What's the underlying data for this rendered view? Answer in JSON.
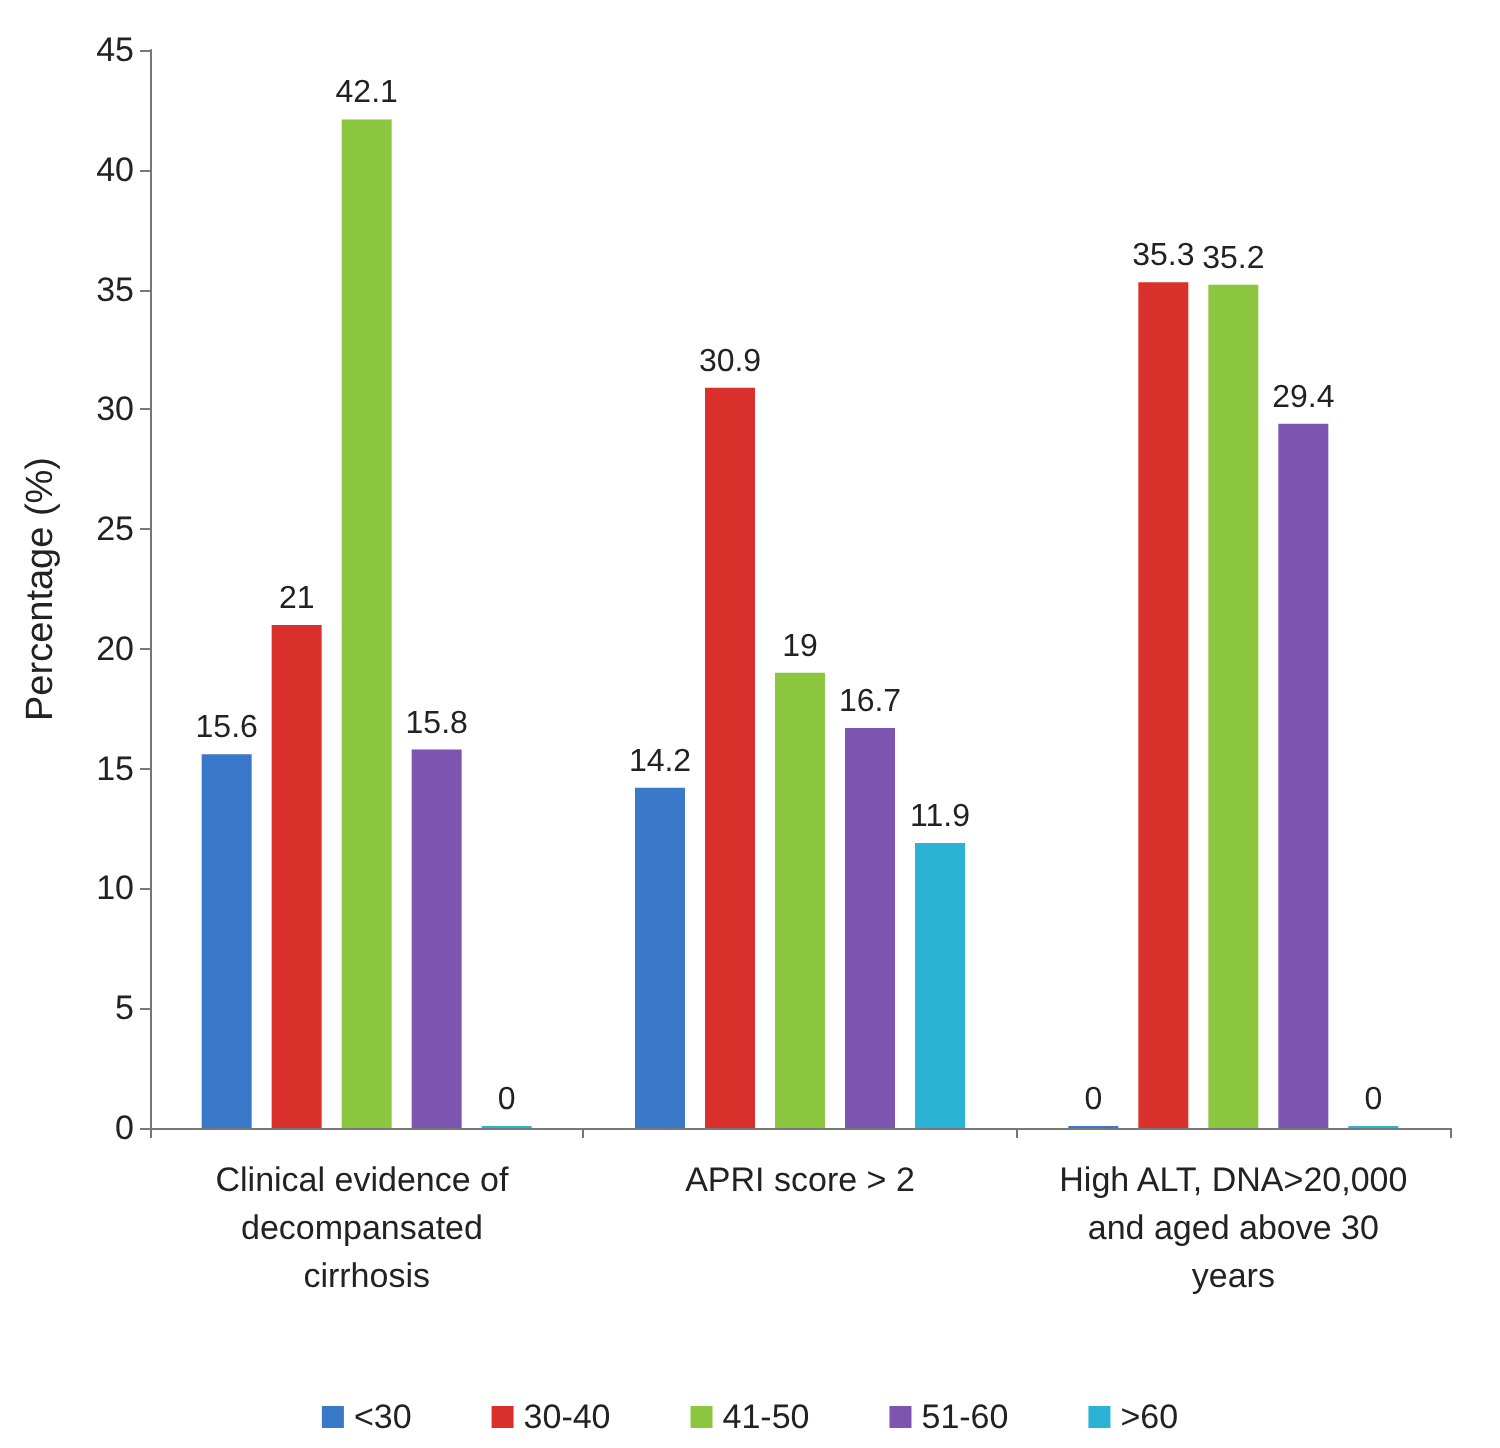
{
  "chart_data": {
    "type": "bar",
    "ylabel": "Percentage (%)",
    "categories": [
      "Clinical evidence of decompansated cirrhosis",
      "APRI score > 2",
      "High ALT, DNA>20,000 and aged above 30 years"
    ],
    "series": [
      {
        "name": "<30",
        "color": "#3a78c9",
        "values": [
          15.6,
          14.2,
          0
        ]
      },
      {
        "name": "30-40",
        "color": "#d9302c",
        "values": [
          21,
          30.9,
          35.3
        ]
      },
      {
        "name": "41-50",
        "color": "#8cc63f",
        "values": [
          42.1,
          19,
          35.2
        ]
      },
      {
        "name": "51-60",
        "color": "#7d55b0",
        "values": [
          15.8,
          16.7,
          29.4
        ]
      },
      {
        "name": ">60",
        "color": "#2ab3d4",
        "values": [
          0,
          11.9,
          0
        ]
      }
    ],
    "ylim": [
      0,
      45
    ],
    "yticks": [
      0,
      5,
      10,
      15,
      20,
      25,
      30,
      35,
      40,
      45
    ],
    "data_labels": true,
    "grid": false,
    "legend": "bottom"
  }
}
